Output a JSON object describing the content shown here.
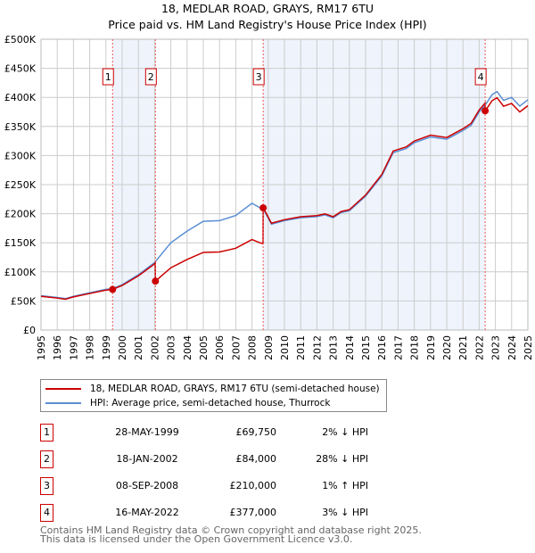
{
  "chart_data": {
    "type": "line",
    "title": "18, MEDLAR ROAD, GRAYS, RM17 6TU",
    "subtitle": "Price paid vs. HM Land Registry's House Price Index (HPI)",
    "xlim": [
      1995,
      2025
    ],
    "ylim": [
      0,
      500000
    ],
    "x_ticks": [
      "1995",
      "1996",
      "1997",
      "1998",
      "1999",
      "2000",
      "2001",
      "2002",
      "2003",
      "2004",
      "2005",
      "2006",
      "2007",
      "2008",
      "2009",
      "2010",
      "2011",
      "2012",
      "2013",
      "2014",
      "2015",
      "2016",
      "2017",
      "2018",
      "2019",
      "2020",
      "2021",
      "2022",
      "2023",
      "2024",
      "2025"
    ],
    "y_ticks": [
      {
        "v": 0,
        "label": "£0"
      },
      {
        "v": 50000,
        "label": "£50K"
      },
      {
        "v": 100000,
        "label": "£100K"
      },
      {
        "v": 150000,
        "label": "£150K"
      },
      {
        "v": 200000,
        "label": "£200K"
      },
      {
        "v": 250000,
        "label": "£250K"
      },
      {
        "v": 300000,
        "label": "£300K"
      },
      {
        "v": 350000,
        "label": "£350K"
      },
      {
        "v": 400000,
        "label": "£400K"
      },
      {
        "v": 450000,
        "label": "£450K"
      },
      {
        "v": 500000,
        "label": "£500K"
      }
    ],
    "grid": true,
    "shaded_ranges": [
      [
        1999.41,
        2002.05
      ],
      [
        2008.69,
        2022.37
      ]
    ],
    "series": [
      {
        "name": "18, MEDLAR ROAD, GRAYS, RM17 6TU (semi-detached house)",
        "color": "#cc0000"
      },
      {
        "name": "HPI: Average price, semi-detached house, Thurrock",
        "color": "#5b8fd4",
        "x": [
          1995,
          1996,
          1996.5,
          1997,
          1998,
          1999,
          1999.4,
          2000,
          2001,
          2002,
          2003,
          2004,
          2005,
          2006,
          2007,
          2008,
          2008.5,
          2008.7,
          2009.2,
          2010,
          2011,
          2012,
          2012.5,
          2013,
          2013.5,
          2014,
          2015,
          2016,
          2016.7,
          2017.5,
          2018,
          2019,
          2020,
          2021,
          2021.5,
          2022,
          2022.4,
          2022.8,
          2023.1,
          2023.5,
          2024,
          2024.5,
          2025
        ],
        "y": [
          59000,
          56000,
          54000,
          58000,
          64000,
          70000,
          71000,
          78000,
          95000,
          116000,
          150000,
          170000,
          187000,
          188000,
          197000,
          218000,
          210000,
          208000,
          182000,
          188000,
          193000,
          195000,
          198000,
          193000,
          202000,
          205000,
          230000,
          265000,
          305000,
          312000,
          322000,
          332000,
          328000,
          343000,
          352000,
          375000,
          388000,
          405000,
          410000,
          395000,
          400000,
          385000,
          396000
        ]
      }
    ],
    "sales": [
      {
        "id": "1",
        "x": 1999.41,
        "date": "28-MAY-1999",
        "price_value": 69750,
        "price": "£69,750",
        "hpi": "2% ↓ HPI"
      },
      {
        "id": "2",
        "x": 2002.05,
        "date": "18-JAN-2002",
        "price_value": 84000,
        "price": "£84,000",
        "hpi": "28% ↓ HPI"
      },
      {
        "id": "3",
        "x": 2008.69,
        "date": "08-SEP-2008",
        "price_value": 210000,
        "price": "£210,000",
        "hpi": "1% ↑ HPI"
      },
      {
        "id": "4",
        "x": 2022.37,
        "date": "16-MAY-2022",
        "price_value": 377000,
        "price": "£377,000",
        "hpi": "3% ↓ HPI"
      }
    ]
  },
  "footer": {
    "line1": "Contains HM Land Registry data © Crown copyright and database right 2025.",
    "line2": "This data is licensed under the Open Government Licence v3.0."
  }
}
